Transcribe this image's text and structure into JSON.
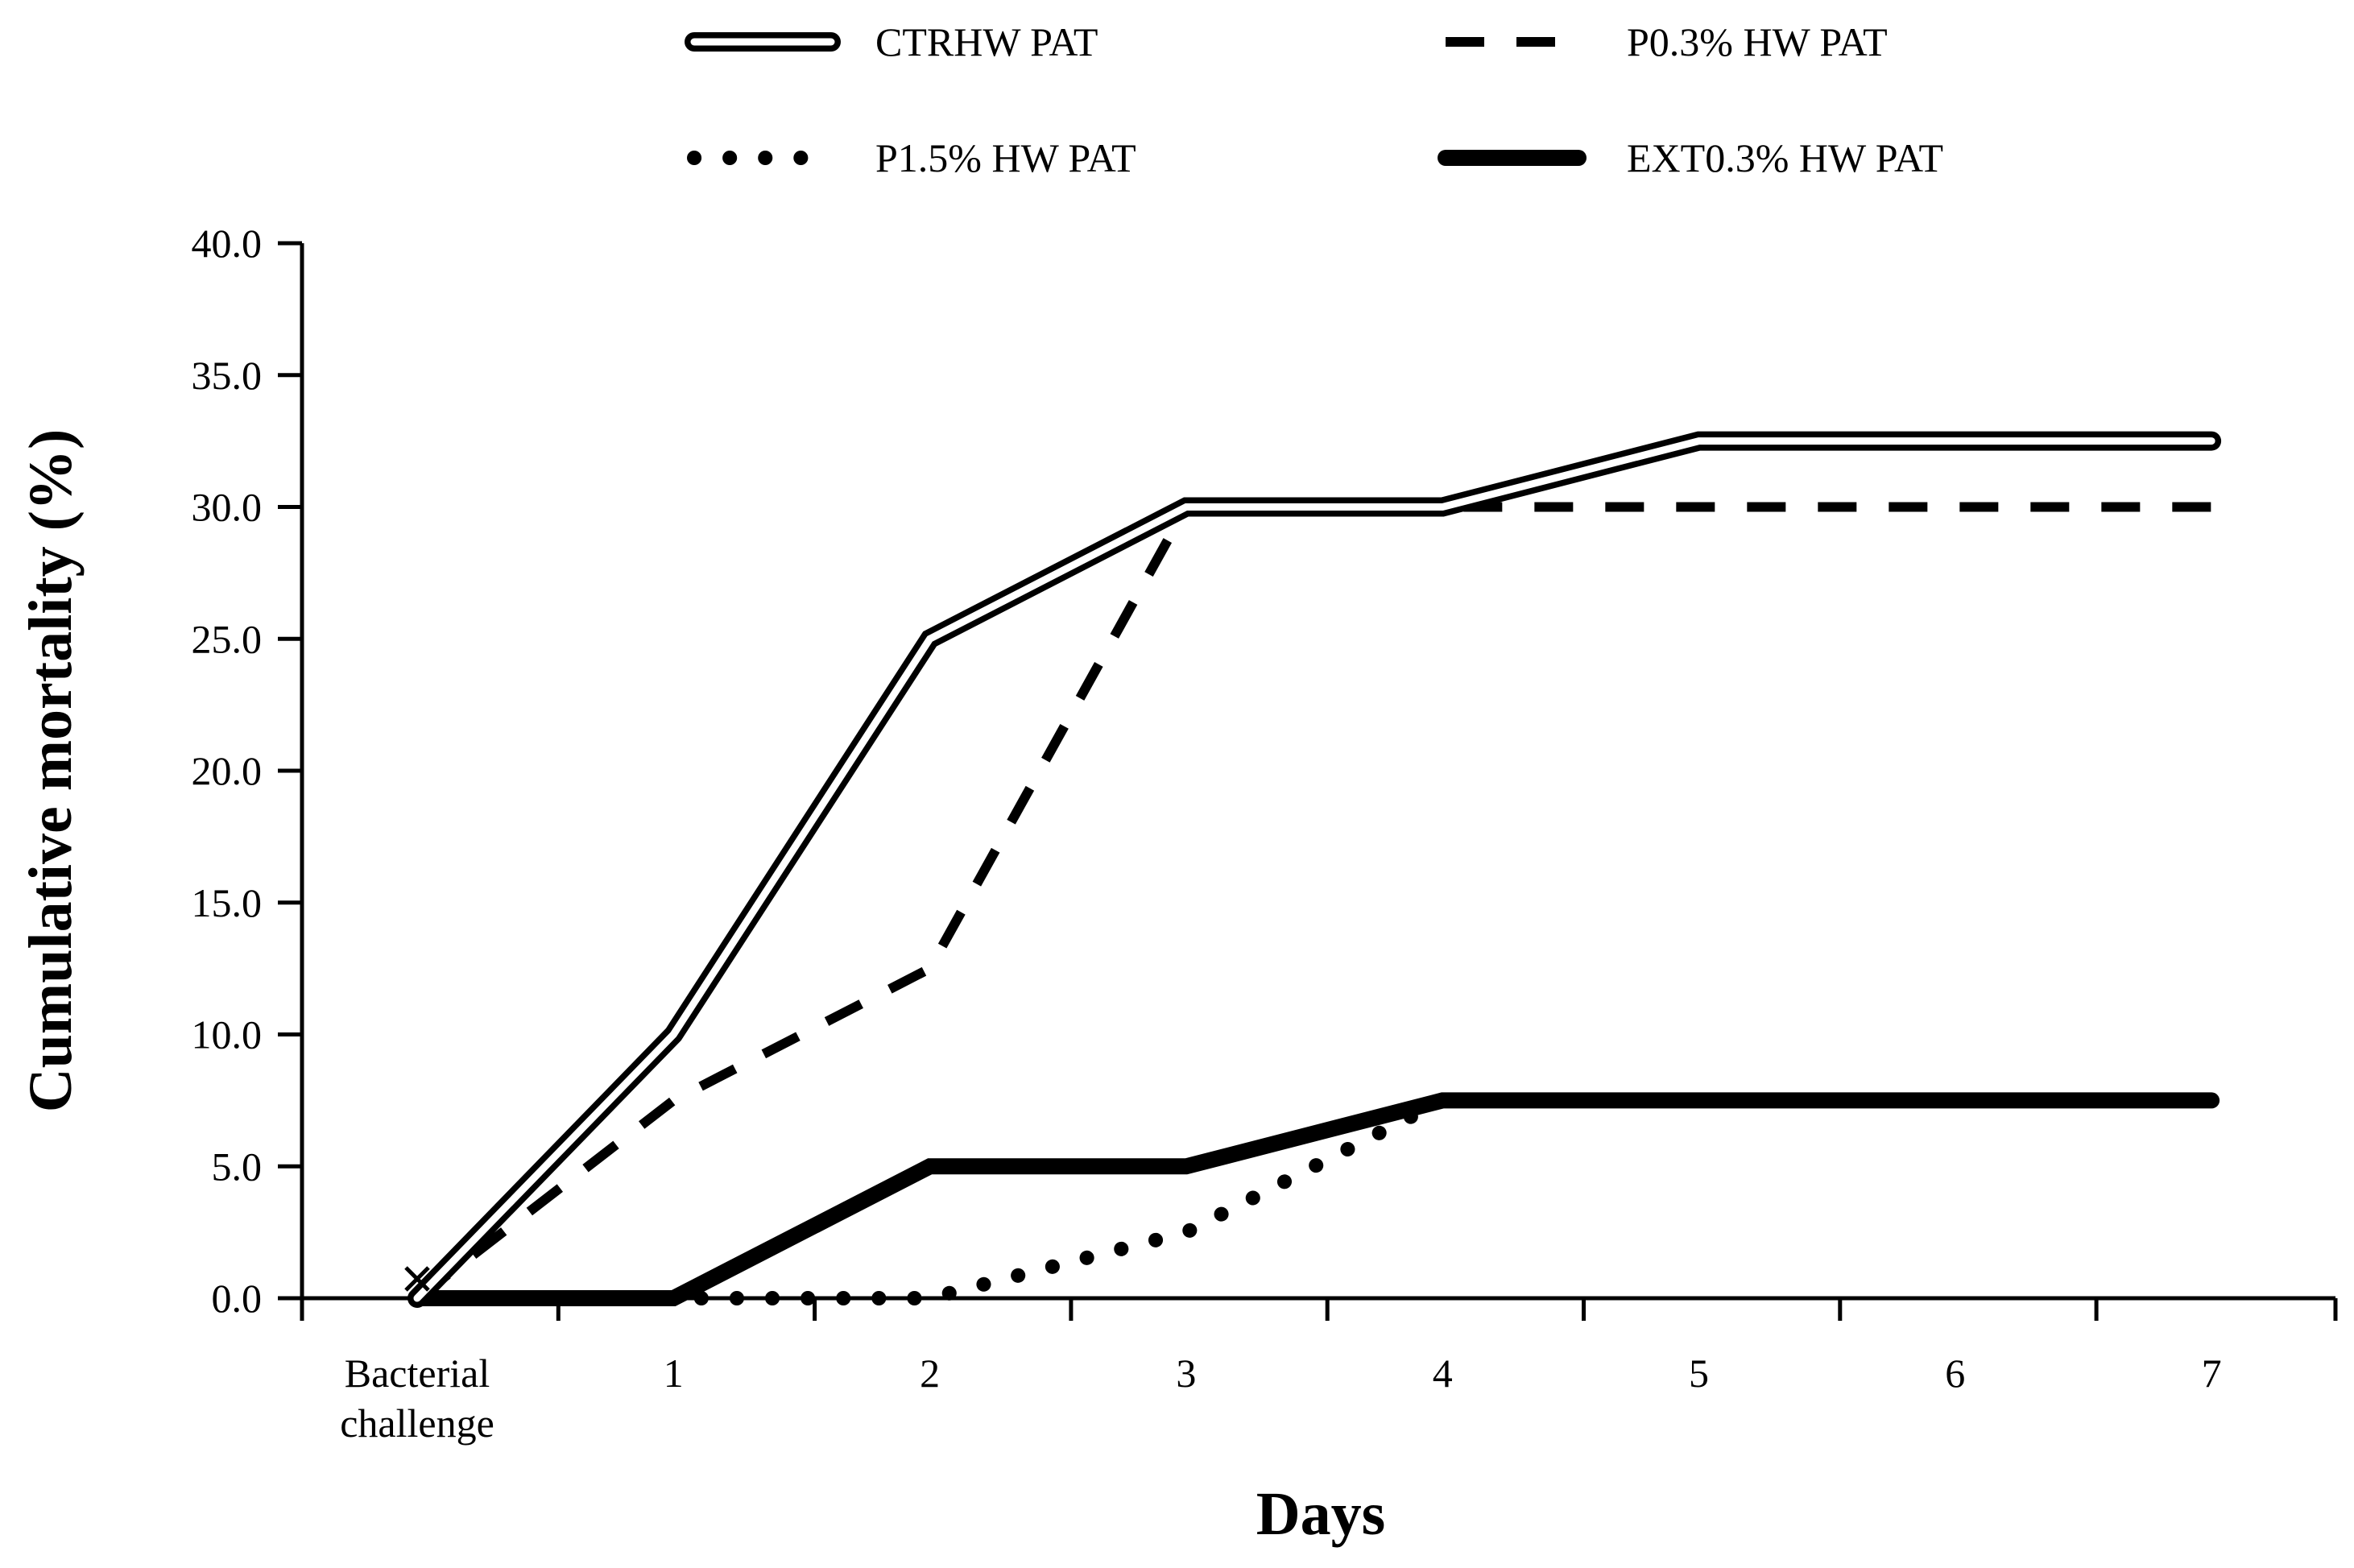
{
  "chart_data": {
    "type": "line",
    "title": "",
    "xlabel": "Days",
    "ylabel": "Cumulative mortality (%)",
    "categories": [
      [
        "Bacterial",
        "challenge"
      ],
      [
        "1"
      ],
      [
        "2"
      ],
      [
        "3"
      ],
      [
        "4"
      ],
      [
        "5"
      ],
      [
        "6"
      ],
      [
        "7"
      ]
    ],
    "ylim": [
      0,
      40
    ],
    "yticks": [
      "0.0",
      "5.0",
      "10.0",
      "15.0",
      "20.0",
      "25.0",
      "30.0",
      "35.0",
      "40.0"
    ],
    "grid": false,
    "legend_position": "top",
    "series": [
      {
        "name": "CTRHW PAT",
        "style": "double",
        "values": [
          0,
          10.0,
          25.0,
          30.0,
          30.0,
          32.5,
          32.5,
          32.5
        ]
      },
      {
        "name": "P0.3% HW PAT",
        "style": "dashed",
        "values": [
          0,
          7.5,
          12.5,
          30.0,
          30.0,
          30.0,
          30.0,
          30.0
        ]
      },
      {
        "name": "P1.5% HW PAT",
        "style": "dotted",
        "values": [
          0,
          0,
          0,
          2.5,
          7.5,
          7.5,
          7.5,
          7.5
        ]
      },
      {
        "name": "EXT0.3% HW PAT",
        "style": "thick",
        "values": [
          0,
          0,
          5.0,
          5.0,
          7.5,
          7.5,
          7.5,
          7.5
        ]
      }
    ],
    "color": "#000000"
  }
}
